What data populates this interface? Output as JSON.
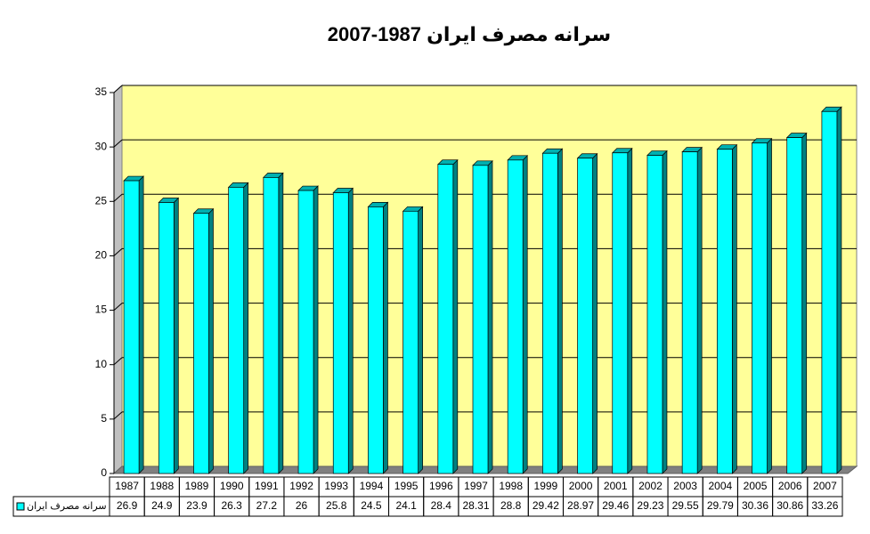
{
  "chart_data": {
    "type": "bar3d",
    "title": "سرانه مصرف ایران 1987-2007",
    "categories": [
      "1987",
      "1988",
      "1989",
      "1990",
      "1991",
      "1992",
      "1993",
      "1994",
      "1995",
      "1996",
      "1997",
      "1998",
      "1999",
      "2000",
      "2001",
      "2002",
      "2003",
      "2004",
      "2005",
      "2006",
      "2007"
    ],
    "series": [
      {
        "name": "سرانه مصرف ایران",
        "color": "#00ffff",
        "values": [
          26.9,
          24.9,
          23.9,
          26.3,
          27.2,
          26,
          25.8,
          24.5,
          24.1,
          28.4,
          28.31,
          28.8,
          29.42,
          28.97,
          29.46,
          29.23,
          29.55,
          29.79,
          30.36,
          30.86,
          33.26
        ]
      }
    ],
    "ylim": [
      0,
      35
    ],
    "yticks": [
      0,
      5,
      10,
      15,
      20,
      25,
      30,
      35
    ],
    "grid": true
  }
}
